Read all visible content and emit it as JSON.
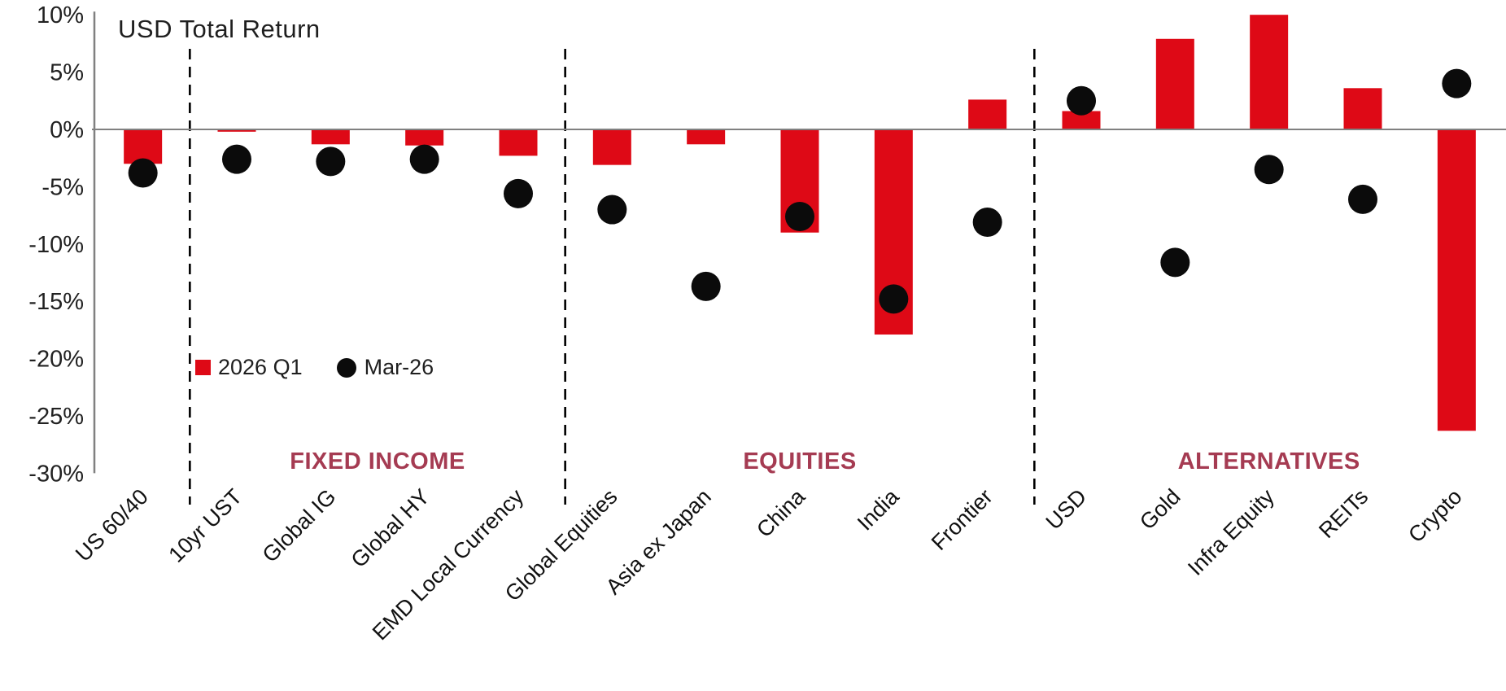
{
  "title": "USD Total Return",
  "legend": {
    "bar_label": "2026 Q1",
    "dot_label": "Mar-26"
  },
  "colors": {
    "bar": "#DE0916",
    "dot": "#0b0b0b",
    "section_label": "#A53B52",
    "axis_gray": "#808080",
    "separator": "#000000",
    "text": "#1f1f1f"
  },
  "chart_data": {
    "type": "bar",
    "title": "USD Total Return",
    "xlabel": "",
    "ylabel": "",
    "ylim": [
      -30,
      10
    ],
    "ytick_step": 5,
    "ytick_labels": [
      "10%",
      "5%",
      "0%",
      "-5%",
      "-10%",
      "-15%",
      "-20%",
      "-25%",
      "-30%"
    ],
    "grid": false,
    "legend_position": "inside-left",
    "categories": [
      "US 60/40",
      "10yr UST",
      "Global IG",
      "Global HY",
      "EMD Local Currency",
      "Global Equities",
      "Asia ex Japan",
      "China",
      "India",
      "Frontier",
      "USD",
      "Gold",
      "Infra Equity",
      "REITs",
      "Crypto"
    ],
    "series": [
      {
        "name": "2026 Q1",
        "type": "bar",
        "color": "#DE0916",
        "values": [
          -3.0,
          -0.2,
          -1.3,
          -1.4,
          -2.3,
          -3.1,
          -1.3,
          -9.0,
          -17.9,
          2.6,
          1.6,
          7.9,
          10.0,
          3.6,
          -26.3
        ]
      },
      {
        "name": "Mar-26",
        "type": "scatter",
        "color": "#0b0b0b",
        "values": [
          -3.8,
          -2.6,
          -2.8,
          -2.6,
          -5.6,
          -7.0,
          -13.7,
          -7.6,
          -14.8,
          -8.1,
          2.5,
          -11.6,
          -3.5,
          -6.1,
          4.0
        ]
      }
    ],
    "sections": [
      {
        "label": "FIXED INCOME",
        "from": 1,
        "to": 4
      },
      {
        "label": "EQUITIES",
        "from": 5,
        "to": 9
      },
      {
        "label": "ALTERNATIVES",
        "from": 10,
        "to": 14
      }
    ],
    "separators_after": [
      0,
      4,
      9
    ]
  }
}
